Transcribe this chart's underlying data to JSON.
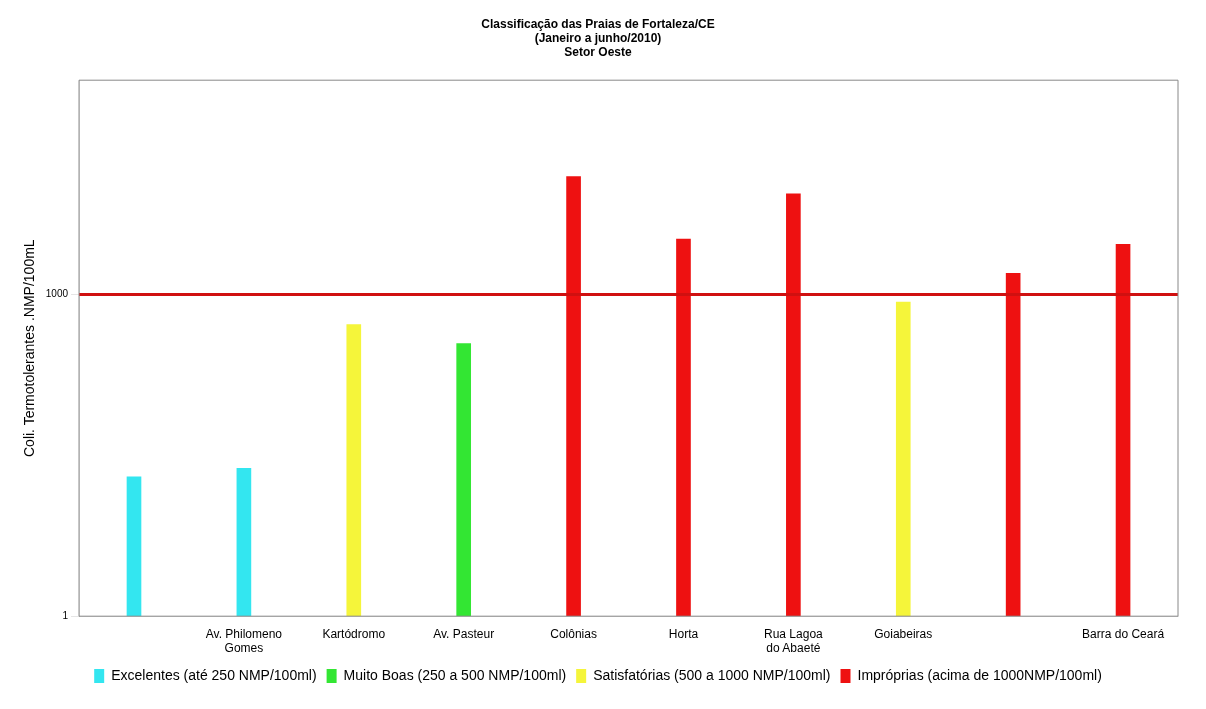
{
  "chart_data": {
    "type": "bar",
    "title": "Classificação das Praias de Fortaleza/CE\n(Janeiro a junho/2010)\nSetor Oeste",
    "ylabel": "Coli. Termotolerantes .NMP/100mL",
    "categories": [
      null,
      "Av. Philomeno Gomes",
      "Kartódromo",
      "Av. Pasteur",
      "Colônias",
      "Horta",
      "Rua Lagoa do Abaeté",
      "Goiabeiras",
      null,
      "Barra do Ceará"
    ],
    "series": [
      {
        "name": "Excelentes (até 250 NMP/100ml)",
        "color": "#33e6f0",
        "values": [
          20,
          24,
          null,
          null,
          null,
          null,
          null,
          null,
          null,
          null
        ]
      },
      {
        "name": "Muito Boas (250 a 500 NMP/100ml)",
        "color": "#33e633",
        "values": [
          null,
          null,
          null,
          350,
          null,
          null,
          null,
          null,
          null,
          null
        ]
      },
      {
        "name": "Satisfatórias (500 a 1000 NMP/100ml)",
        "color": "#f5f53a",
        "values": [
          null,
          null,
          525,
          null,
          null,
          null,
          null,
          850,
          null,
          null
        ]
      },
      {
        "name": "Impróprias (acima de 1000NMP/100ml)",
        "color": "#ee1111",
        "values": [
          null,
          null,
          null,
          null,
          12600,
          3300,
          8700,
          null,
          1580,
          2950
        ]
      }
    ],
    "log": "y",
    "ylim": [
      1,
      100000
    ],
    "yticks": [
      1,
      1000
    ],
    "grid": false,
    "legend": "bottom",
    "ref_lines": [
      {
        "axis": "y",
        "value": 1000,
        "color": "#d01010"
      }
    ]
  }
}
